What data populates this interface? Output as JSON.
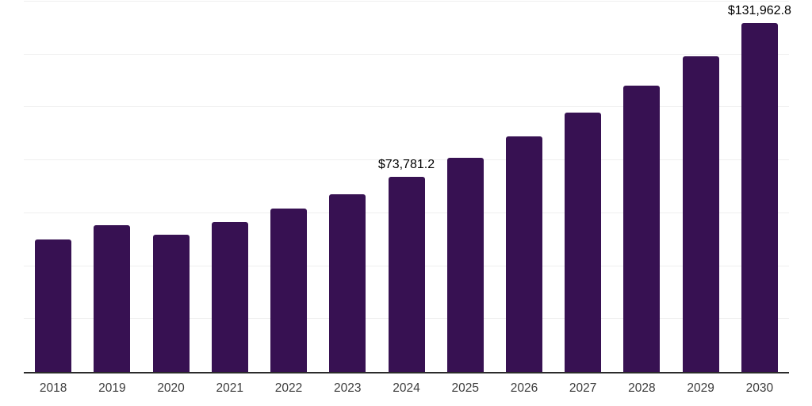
{
  "chart_data": {
    "type": "bar",
    "title": "",
    "xlabel": "",
    "ylabel": "",
    "categories": [
      "2018",
      "2019",
      "2020",
      "2021",
      "2022",
      "2023",
      "2024",
      "2025",
      "2026",
      "2027",
      "2028",
      "2029",
      "2030"
    ],
    "values": [
      50100,
      55400,
      51900,
      56600,
      61700,
      67300,
      73781.2,
      80800,
      88900,
      97900,
      108100,
      119400,
      131962.8
    ],
    "data_labels": [
      "",
      "",
      "",
      "",
      "",
      "",
      "$73,781.2",
      "",
      "",
      "",
      "",
      "",
      "$131,962.8"
    ],
    "ylim": [
      0,
      140000
    ],
    "gridline_step": 20000,
    "grid": "horizontal",
    "legend_position": "none",
    "colors": {
      "bar_fill": "#371152",
      "gridline": "#efefef",
      "axis_line": "#2b2b2b",
      "tick_label": "#3d3d3d",
      "data_label": "#000000"
    }
  }
}
